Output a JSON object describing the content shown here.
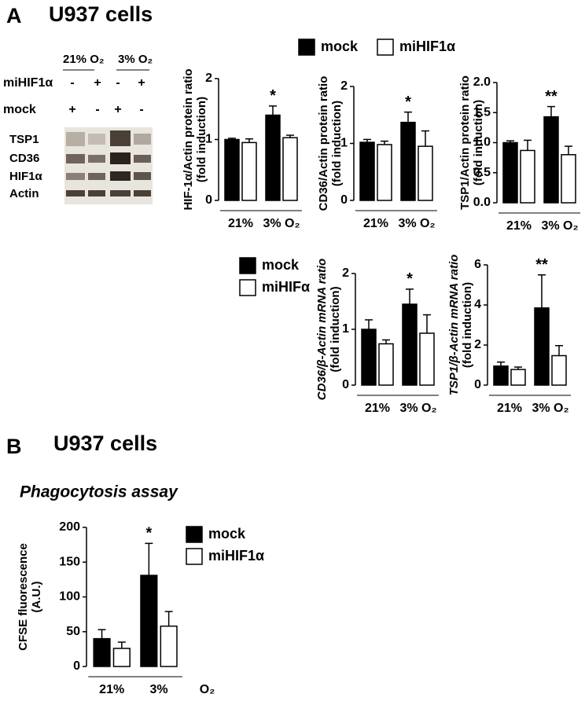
{
  "panels": [
    {
      "letter": "A",
      "title": "U937 cells"
    },
    {
      "letter": "B",
      "title": "U937 cells"
    }
  ],
  "blot": {
    "conditions": [
      "21% O₂",
      "3% O₂"
    ],
    "rows": [
      {
        "label": "miHIF1α",
        "signs": [
          "-",
          "+",
          "-",
          "+"
        ]
      },
      {
        "label": "mock",
        "signs": [
          "+",
          "-",
          "+",
          "-"
        ]
      }
    ],
    "bands": [
      "TSP1",
      "CD36",
      "HIF1α",
      "Actin"
    ]
  },
  "chart_data": [
    {
      "type": "bar",
      "ylabel": [
        "HIF-1α/Actin protein ratio",
        "(fold induction)"
      ],
      "group_labels": [
        "21%",
        "3% O₂"
      ],
      "series": [
        {
          "name": "mock",
          "color": "#000000",
          "values": [
            1.0,
            1.4
          ],
          "errors": [
            0.02,
            0.15
          ]
        },
        {
          "name": "miHIF1α",
          "color": "#ffffff",
          "values": [
            0.95,
            1.03
          ],
          "errors": [
            0.06,
            0.04
          ]
        }
      ],
      "annotation": "*",
      "ylim": [
        0,
        2
      ],
      "yticks": [
        0,
        1,
        2
      ]
    },
    {
      "type": "bar",
      "ylabel": [
        "CD36/Actin protein ratio",
        "(fold induction)"
      ],
      "group_labels": [
        "21%",
        "3% O₂"
      ],
      "series": [
        {
          "color": "#000000",
          "values": [
            1.02,
            1.37
          ],
          "errors": [
            0.05,
            0.18
          ]
        },
        {
          "color": "#ffffff",
          "values": [
            0.98,
            0.95
          ],
          "errors": [
            0.06,
            0.27
          ]
        }
      ],
      "annotation": "*",
      "ylim": [
        0,
        2
      ],
      "yticks": [
        0,
        1,
        2
      ]
    },
    {
      "type": "bar",
      "ylabel": [
        "TSP1/Actin protein ratio",
        "(fold induction)"
      ],
      "group_labels": [
        "21%",
        "3% O₂"
      ],
      "series": [
        {
          "color": "#000000",
          "values": [
            1.0,
            1.43
          ],
          "errors": [
            0.03,
            0.17
          ]
        },
        {
          "color": "#ffffff",
          "values": [
            0.87,
            0.8
          ],
          "errors": [
            0.17,
            0.14
          ]
        }
      ],
      "annotation": "**",
      "ylim": [
        0,
        2
      ],
      "yticks": [
        {
          "value": 0,
          "label": "0.0"
        },
        {
          "value": 0.5,
          "label": "0.5"
        },
        {
          "value": 1,
          "label": "1.0"
        },
        {
          "value": 1.5,
          "label": "1.5"
        },
        {
          "value": 2,
          "label": "2.0"
        }
      ]
    },
    {
      "type": "bar",
      "ylabel": [
        "CD36/β-Actin mRNA ratio",
        "(fold induction)"
      ],
      "group_labels": [
        "21%",
        "3% O₂"
      ],
      "series": [
        {
          "name": "mock",
          "color": "#000000",
          "values": [
            1.0,
            1.45
          ],
          "errors": [
            0.17,
            0.27
          ]
        },
        {
          "name": "miHIFα",
          "color": "#ffffff",
          "values": [
            0.74,
            0.93
          ],
          "errors": [
            0.07,
            0.33
          ]
        }
      ],
      "annotation": "*",
      "ylim": [
        0,
        2
      ],
      "yticks": [
        0,
        1,
        2
      ]
    },
    {
      "type": "bar",
      "ylabel": [
        "TSP1/β-Actin mRNA ratio",
        "(fold induction)"
      ],
      "group_labels": [
        "21%",
        "3% O₂"
      ],
      "series": [
        {
          "color": "#000000",
          "values": [
            0.95,
            3.85
          ],
          "errors": [
            0.2,
            1.65
          ]
        },
        {
          "color": "#ffffff",
          "values": [
            0.78,
            1.47
          ],
          "errors": [
            0.12,
            0.5
          ]
        }
      ],
      "annotation": "**",
      "ylim": [
        0,
        6
      ],
      "yticks": [
        0,
        2,
        4,
        6
      ]
    },
    {
      "type": "bar",
      "title": "Phagocytosis assay",
      "ylabel": [
        "CFSE fluorescence",
        "(A.U.)"
      ],
      "group_labels": [
        "21%",
        "3%"
      ],
      "unit_label": "O₂",
      "series": [
        {
          "name": "mock",
          "color": "#000000",
          "values": [
            40,
            131
          ],
          "errors": [
            13,
            46
          ]
        },
        {
          "name": "miHIF1α",
          "color": "#ffffff",
          "values": [
            26,
            58
          ],
          "errors": [
            9,
            21
          ]
        }
      ],
      "annotation": "*",
      "ylim": [
        0,
        200
      ],
      "yticks": [
        0,
        50,
        100,
        150,
        200
      ]
    }
  ]
}
